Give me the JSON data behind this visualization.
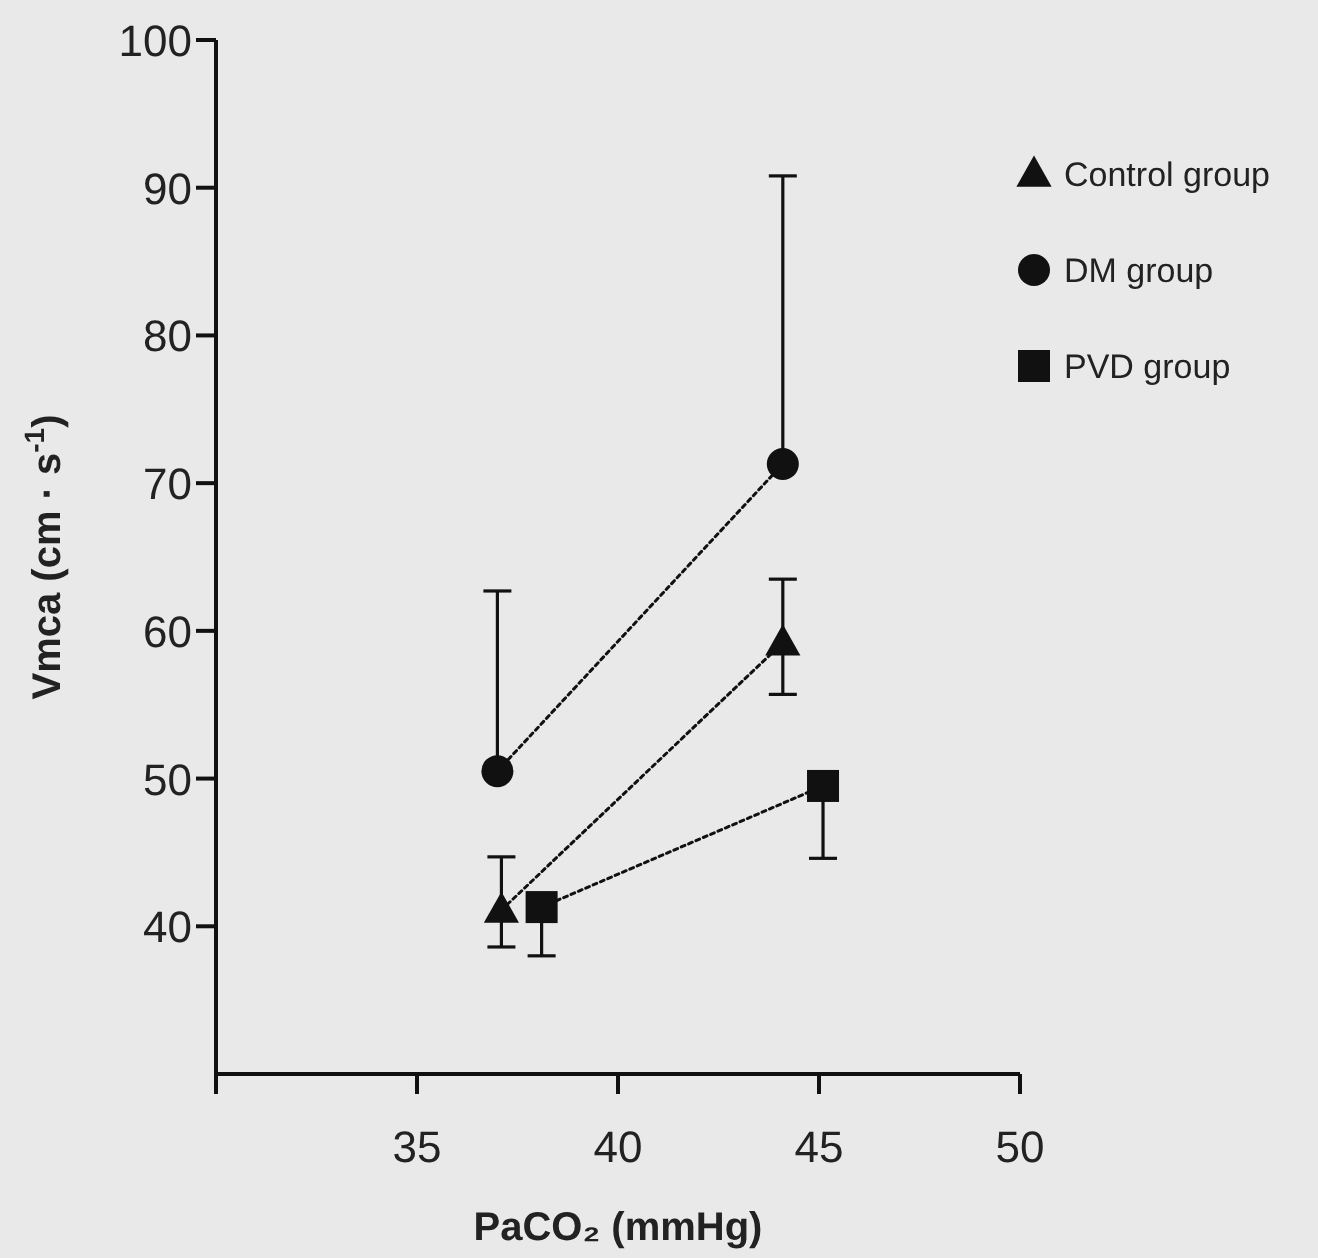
{
  "chart_data": {
    "type": "line",
    "xlabel": "PaCO₂ (mmHg)",
    "ylabel": "Vmca (cm · s$^{-1}$)",
    "xlim": [
      30,
      50
    ],
    "xticks": [
      {
        "value": 30,
        "label": null
      },
      35,
      40,
      45,
      50
    ],
    "ylim": [
      30,
      100
    ],
    "yticks": [
      40,
      50,
      60,
      70,
      80,
      90,
      100
    ],
    "legend": "top right",
    "line_style": "dotted",
    "grid": false,
    "series": [
      {
        "name": "Control group",
        "color": "#111111",
        "marker": "triangle",
        "x": [
          37.1,
          44.1
        ],
        "values": [
          41.1,
          59.2
        ],
        "errors": [
          [
            38.6,
            44.7
          ],
          [
            55.7,
            63.5
          ]
        ]
      },
      {
        "name": "DM group",
        "color": "#111111",
        "marker": "circle",
        "x": [
          37.0,
          44.1
        ],
        "values": [
          50.5,
          71.3
        ],
        "errors": [
          [
            50.5,
            62.7
          ],
          [
            71.3,
            90.8
          ]
        ]
      },
      {
        "name": "PVD group",
        "color": "#111111",
        "marker": "square",
        "x": [
          38.1,
          45.1
        ],
        "values": [
          41.3,
          49.5
        ],
        "errors": [
          [
            38.0,
            41.3
          ],
          [
            44.6,
            49.5
          ]
        ]
      }
    ]
  }
}
